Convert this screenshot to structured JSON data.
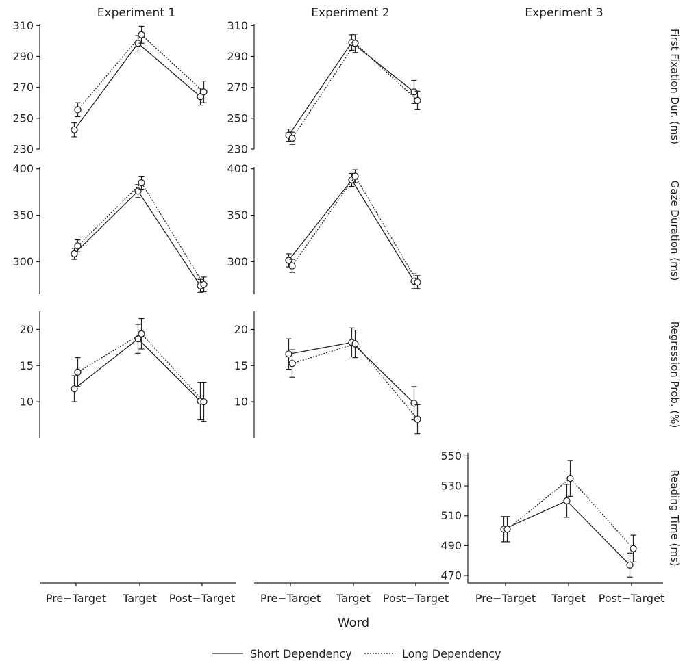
{
  "chart_data": {
    "type": "line",
    "columns": [
      "Experiment 1",
      "Experiment 2",
      "Experiment 3"
    ],
    "rows": [
      "First Fixation Dur. (ms)",
      "Gaze Duration (ms)",
      "Regression Prob. (%)",
      "Reading Time (ms)"
    ],
    "categories": [
      "Pre−Target",
      "Target",
      "Post−Target"
    ],
    "xlabel": "Word",
    "series": [
      {
        "name": "Short Dependency",
        "line": "solid"
      },
      {
        "name": "Long Dependency",
        "line": "dotted"
      }
    ],
    "legend_position": "bottom-center",
    "grid": false,
    "panels": [
      {
        "row": 0,
        "col": 0,
        "ylim": [
          230,
          311
        ],
        "yticks": [
          230,
          250,
          270,
          290,
          310
        ],
        "series": [
          {
            "values": [
              242.5,
              298.5,
              264
            ],
            "err": [
              4.5,
              5,
              5.5
            ]
          },
          {
            "values": [
              255.5,
              304,
              267
            ],
            "err": [
              4.5,
              5.5,
              7
            ]
          }
        ]
      },
      {
        "row": 0,
        "col": 1,
        "ylim": [
          230,
          311
        ],
        "yticks": [
          230,
          250,
          270,
          290,
          310
        ],
        "series": [
          {
            "values": [
              239,
              299,
              267
            ],
            "err": [
              4,
              5,
              7.5
            ]
          },
          {
            "values": [
              237,
              298.5,
              261.5
            ],
            "err": [
              4,
              6,
              6
            ]
          }
        ]
      },
      {
        "row": 1,
        "col": 0,
        "ylim": [
          265,
          402
        ],
        "yticks": [
          300,
          350,
          400
        ],
        "series": [
          {
            "values": [
              308.5,
              376,
              274
            ],
            "err": [
              6,
              7,
              7
            ]
          },
          {
            "values": [
              317,
              385,
              275.5
            ],
            "err": [
              6.5,
              7,
              8
            ]
          }
        ]
      },
      {
        "row": 1,
        "col": 1,
        "ylim": [
          265,
          402
        ],
        "yticks": [
          300,
          350,
          400
        ],
        "series": [
          {
            "values": [
              301.5,
              388,
              279
            ],
            "err": [
              7,
              7,
              8
            ]
          },
          {
            "values": [
              295.5,
              392,
              278
            ],
            "err": [
              7,
              7,
              7
            ]
          }
        ]
      },
      {
        "row": 2,
        "col": 0,
        "ylim": [
          5,
          22.5
        ],
        "yticks": [
          10,
          15,
          20
        ],
        "series": [
          {
            "values": [
              11.8,
              18.7,
              10.1
            ],
            "err": [
              1.8,
              2.0,
              2.6
            ]
          },
          {
            "values": [
              14.1,
              19.4,
              10.0
            ],
            "err": [
              2.0,
              2.1,
              2.7
            ]
          }
        ]
      },
      {
        "row": 2,
        "col": 1,
        "ylim": [
          5,
          22.5
        ],
        "yticks": [
          10,
          15,
          20
        ],
        "series": [
          {
            "values": [
              16.6,
              18.2,
              9.8
            ],
            "err": [
              2.1,
              2.0,
              2.3
            ]
          },
          {
            "values": [
              15.3,
              18.0,
              7.6
            ],
            "err": [
              1.9,
              1.9,
              2.0
            ]
          }
        ]
      },
      {
        "row": 3,
        "col": 2,
        "ylim": [
          465,
          552
        ],
        "yticks": [
          470,
          490,
          510,
          530,
          550
        ],
        "series": [
          {
            "values": [
              501,
              520,
              477
            ],
            "err": [
              8.5,
              11,
              8
            ]
          },
          {
            "values": [
              501,
              535,
              488
            ],
            "err": [
              8.5,
              12,
              9
            ]
          }
        ]
      }
    ]
  },
  "legend": {
    "short_label": "Short Dependency",
    "long_label": "Long Dependency"
  }
}
